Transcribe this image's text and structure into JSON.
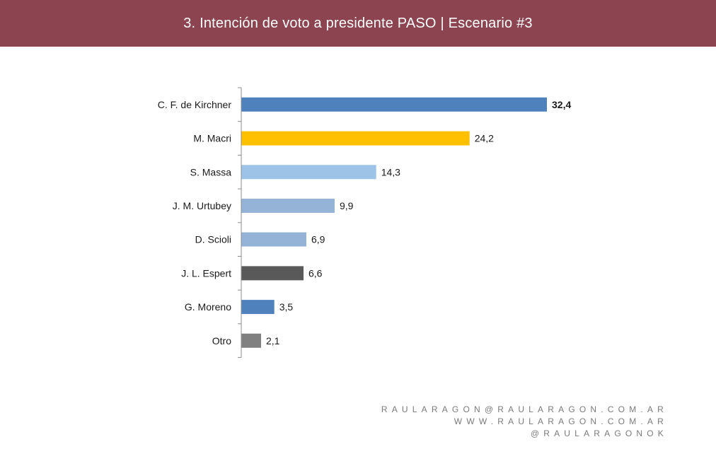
{
  "header": {
    "title": "3. Intención de voto a presidente PASO | Escenario #3"
  },
  "colors": {
    "header_bg": "#8b4450"
  },
  "chart_data": {
    "type": "bar",
    "orientation": "horizontal",
    "categories": [
      "C. F. de Kirchner",
      "M. Macri",
      "S. Massa",
      "J. M. Urtubey",
      "D. Scioli",
      "J. L. Espert",
      "G. Moreno",
      "Otro"
    ],
    "values": [
      32.4,
      24.2,
      14.3,
      9.9,
      6.9,
      6.6,
      3.5,
      2.1
    ],
    "value_labels": [
      "32,4",
      "24,2",
      "14,3",
      "9,9",
      "6,9",
      "6,6",
      "3,5",
      "2,1"
    ],
    "bold_value_index": 0,
    "colors": [
      "#4f81bd",
      "#ffc000",
      "#9dc3e6",
      "#95b3d7",
      "#95b3d7",
      "#595959",
      "#4f81bd",
      "#808080"
    ],
    "xlim": [
      0,
      32.4
    ],
    "grid": false,
    "title": "",
    "xlabel": "",
    "ylabel": ""
  },
  "footer": {
    "lines": [
      "RAULARAGON@RAULARAGON.COM.AR",
      "WWW.RAULARAGON.COM.AR",
      "@RAULARAGONOK"
    ]
  }
}
